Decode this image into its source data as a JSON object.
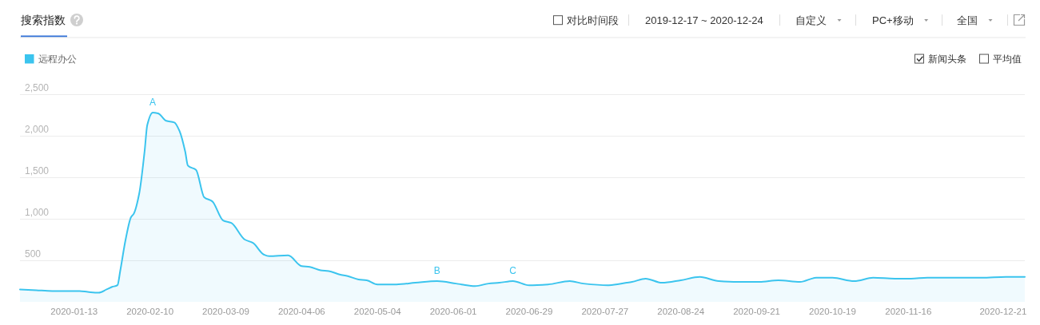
{
  "chart_data": {
    "type": "area",
    "title": "搜索指数",
    "series": [
      {
        "name": "远程办公",
        "color": "#3bc4ee",
        "x": [
          "2019-12-24",
          "2019-12-30",
          "2020-01-05",
          "2020-01-15",
          "2020-01-18",
          "2020-01-22",
          "2020-01-25",
          "2020-01-27",
          "2020-01-29",
          "2020-01-30",
          "2020-02-01",
          "2020-02-03",
          "2020-02-04",
          "2020-02-06",
          "2020-02-08",
          "2020-02-09",
          "2020-02-11",
          "2020-02-13",
          "2020-02-16",
          "2020-02-19",
          "2020-02-21",
          "2020-02-23",
          "2020-02-24",
          "2020-02-27",
          "2020-03-01",
          "2020-03-04",
          "2020-03-08",
          "2020-03-11",
          "2020-03-16",
          "2020-03-19",
          "2020-03-23",
          "2020-03-25",
          "2020-04-01",
          "2020-04-06",
          "2020-04-09",
          "2020-04-13",
          "2020-04-16",
          "2020-04-20",
          "2020-04-23",
          "2020-04-27",
          "2020-04-30",
          "2020-05-04",
          "2020-05-11",
          "2020-05-18",
          "2020-05-26",
          "2020-06-02",
          "2020-06-04",
          "2020-06-09",
          "2020-06-14",
          "2020-06-18",
          "2020-06-23",
          "2020-06-29",
          "2020-07-06",
          "2020-07-14",
          "2020-07-19",
          "2020-07-28",
          "2020-08-04",
          "2020-08-06",
          "2020-08-11",
          "2020-08-17",
          "2020-08-24",
          "2020-08-31",
          "2020-09-07",
          "2020-09-14",
          "2020-09-22",
          "2020-09-29",
          "2020-10-07",
          "2020-10-13",
          "2020-10-19",
          "2020-10-27",
          "2020-11-03",
          "2020-11-11",
          "2020-11-17",
          "2020-11-23",
          "2020-12-03",
          "2020-12-13",
          "2020-12-22",
          "2020-12-29"
        ],
        "values": [
          150,
          140,
          130,
          130,
          120,
          110,
          150,
          180,
          200,
          370,
          750,
          1020,
          1060,
          1300,
          1810,
          2130,
          2280,
          2270,
          2180,
          2160,
          2050,
          1810,
          1640,
          1590,
          1260,
          1210,
          980,
          950,
          750,
          710,
          570,
          550,
          560,
          430,
          420,
          380,
          370,
          330,
          310,
          270,
          260,
          210,
          210,
          230,
          250,
          220,
          210,
          190,
          220,
          230,
          250,
          200,
          210,
          250,
          220,
          200,
          230,
          240,
          280,
          230,
          260,
          300,
          250,
          240,
          240,
          260,
          240,
          290,
          290,
          250,
          290,
          280,
          280,
          290,
          290,
          290,
          300,
          300
        ]
      }
    ],
    "xlim": [
      "2019-12-24",
      "2020-12-29"
    ],
    "xticks": [
      "2020-01-13",
      "2020-02-10",
      "2020-03-09",
      "2020-04-06",
      "2020-05-04",
      "2020-06-01",
      "2020-06-29",
      "2020-07-27",
      "2020-08-24",
      "2020-09-21",
      "2020-10-19",
      "2020-11-16",
      "2020-12-21"
    ],
    "ylim": [
      0,
      2500
    ],
    "yticks": [
      500,
      {
        "value": 1000,
        "label": "1,000"
      },
      {
        "value": 1500,
        "label": "1,500"
      },
      {
        "value": 2000,
        "label": "2,000"
      },
      {
        "value": 2500,
        "label": "2,500"
      }
    ],
    "grid": "y",
    "legend": "top left",
    "annotations": [
      "对比时间段",
      "2019-12-17 ~ 2020-12-24",
      "自定义",
      "PC+移动",
      "全国",
      "新闻头条",
      "平均值",
      {
        "text": "A",
        "x": "2020-02-11",
        "y": 2280
      },
      {
        "text": "B",
        "x": "2020-05-26",
        "y": 250
      },
      {
        "text": "C",
        "x": "2020-06-23",
        "y": 250
      }
    ]
  }
}
